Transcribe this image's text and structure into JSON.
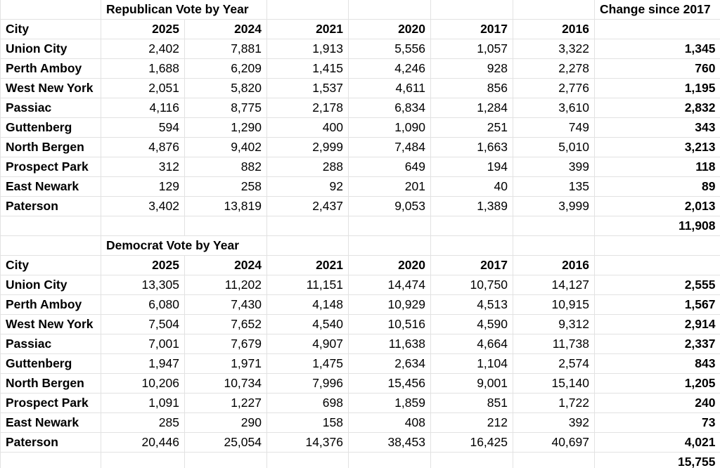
{
  "palette": {
    "background": "#ffffff",
    "text": "#000000",
    "gridline": "#e2e2e2"
  },
  "sections": [
    {
      "title": "Republican Vote by Year",
      "change_header": "Change since 2017",
      "city_header": "City",
      "years": [
        "2025",
        "2024",
        "2021",
        "2020",
        "2017",
        "2016"
      ],
      "rows": [
        {
          "city": "Union City",
          "values": [
            "2,402",
            "7,881",
            "1,913",
            "5,556",
            "1,057",
            "3,322"
          ],
          "change": "1,345"
        },
        {
          "city": "Perth Amboy",
          "values": [
            "1,688",
            "6,209",
            "1,415",
            "4,246",
            "928",
            "2,278"
          ],
          "change": "760"
        },
        {
          "city": "West New York",
          "values": [
            "2,051",
            "5,820",
            "1,537",
            "4,611",
            "856",
            "2,776"
          ],
          "change": "1,195"
        },
        {
          "city": "Passiac",
          "values": [
            "4,116",
            "8,775",
            "2,178",
            "6,834",
            "1,284",
            "3,610"
          ],
          "change": "2,832"
        },
        {
          "city": "Guttenberg",
          "values": [
            "594",
            "1,290",
            "400",
            "1,090",
            "251",
            "749"
          ],
          "change": "343"
        },
        {
          "city": "North Bergen",
          "values": [
            "4,876",
            "9,402",
            "2,999",
            "7,484",
            "1,663",
            "5,010"
          ],
          "change": "3,213"
        },
        {
          "city": "Prospect Park",
          "values": [
            "312",
            "882",
            "288",
            "649",
            "194",
            "399"
          ],
          "change": "118"
        },
        {
          "city": "East Newark",
          "values": [
            "129",
            "258",
            "92",
            "201",
            "40",
            "135"
          ],
          "change": "89"
        },
        {
          "city": "Paterson",
          "values": [
            "3,402",
            "13,819",
            "2,437",
            "9,053",
            "1,389",
            "3,999"
          ],
          "change": "2,013"
        }
      ],
      "total_change": "11,908"
    },
    {
      "title": "Democrat Vote by Year",
      "city_header": "City",
      "years": [
        "2025",
        "2024",
        "2021",
        "2020",
        "2017",
        "2016"
      ],
      "rows": [
        {
          "city": "Union City",
          "values": [
            "13,305",
            "11,202",
            "11,151",
            "14,474",
            "10,750",
            "14,127"
          ],
          "change": "2,555"
        },
        {
          "city": "Perth Amboy",
          "values": [
            "6,080",
            "7,430",
            "4,148",
            "10,929",
            "4,513",
            "10,915"
          ],
          "change": "1,567"
        },
        {
          "city": "West New York",
          "values": [
            "7,504",
            "7,652",
            "4,540",
            "10,516",
            "4,590",
            "9,312"
          ],
          "change": "2,914"
        },
        {
          "city": "Passiac",
          "values": [
            "7,001",
            "7,679",
            "4,907",
            "11,638",
            "4,664",
            "11,738"
          ],
          "change": "2,337"
        },
        {
          "city": "Guttenberg",
          "values": [
            "1,947",
            "1,971",
            "1,475",
            "2,634",
            "1,104",
            "2,574"
          ],
          "change": "843"
        },
        {
          "city": "North Bergen",
          "values": [
            "10,206",
            "10,734",
            "7,996",
            "15,456",
            "9,001",
            "15,140"
          ],
          "change": "1,205"
        },
        {
          "city": "Prospect Park",
          "values": [
            "1,091",
            "1,227",
            "698",
            "1,859",
            "851",
            "1,722"
          ],
          "change": "240"
        },
        {
          "city": "East Newark",
          "values": [
            "285",
            "290",
            "158",
            "408",
            "212",
            "392"
          ],
          "change": "73"
        },
        {
          "city": "Paterson",
          "values": [
            "20,446",
            "25,054",
            "14,376",
            "38,453",
            "16,425",
            "40,697"
          ],
          "change": "4,021"
        }
      ],
      "total_change": "15,755"
    }
  ]
}
